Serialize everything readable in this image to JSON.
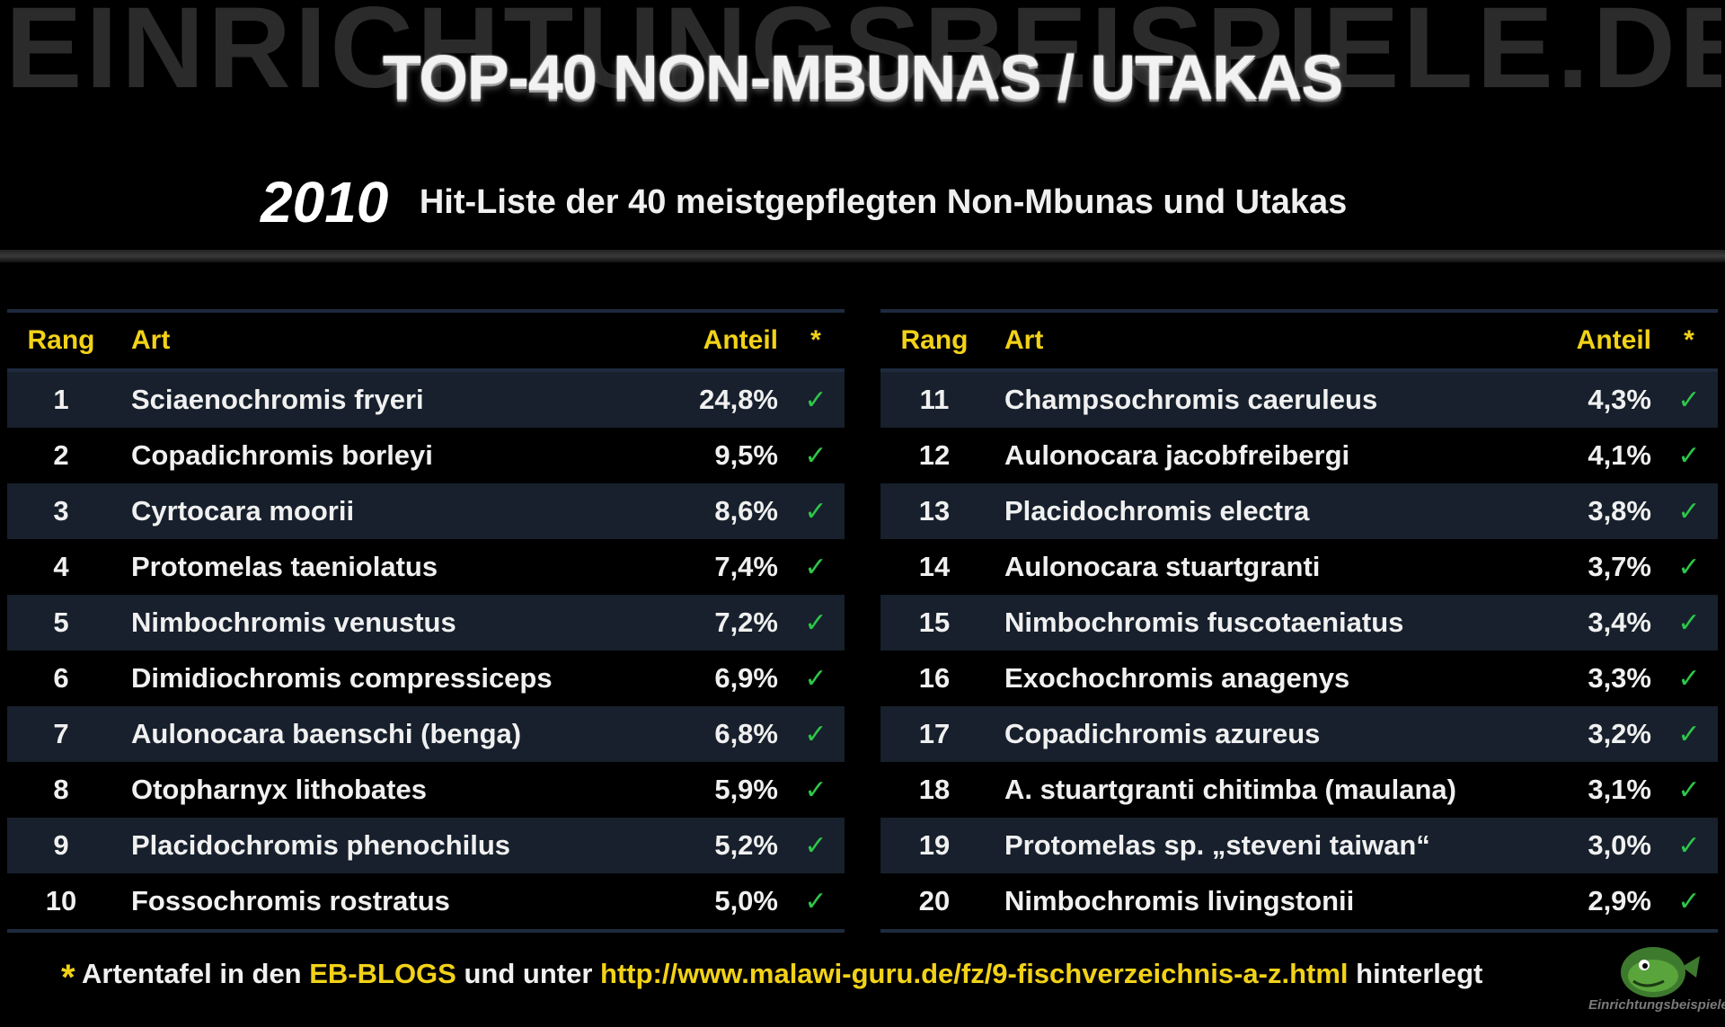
{
  "watermark": "EINRICHTUNGSBEISPIELE.DE",
  "title": "TOP-40 NON-MBUNAS / UTAKAS",
  "year": "2010",
  "subtitle": "Hit-Liste der 40 meistgepflegten Non-Mbunas und Utakas",
  "columns": {
    "rank": "Rang",
    "species": "Art",
    "share": "Anteil",
    "star": "*"
  },
  "check_symbol": "✓",
  "rows": [
    {
      "rank": "1",
      "species": "Sciaenochromis fryeri",
      "share": "24,8%"
    },
    {
      "rank": "2",
      "species": "Copadichromis borleyi",
      "share": "9,5%"
    },
    {
      "rank": "3",
      "species": "Cyrtocara moorii",
      "share": "8,6%"
    },
    {
      "rank": "4",
      "species": "Protomelas taeniolatus",
      "share": "7,4%"
    },
    {
      "rank": "5",
      "species": "Nimbochromis venustus",
      "share": "7,2%"
    },
    {
      "rank": "6",
      "species": "Dimidiochromis compressiceps",
      "share": "6,9%"
    },
    {
      "rank": "7",
      "species": "Aulonocara baenschi (benga)",
      "share": "6,8%"
    },
    {
      "rank": "8",
      "species": "Otopharnyx lithobates",
      "share": "5,9%"
    },
    {
      "rank": "9",
      "species": "Placidochromis phenochilus",
      "share": "5,2%"
    },
    {
      "rank": "10",
      "species": "Fossochromis rostratus",
      "share": "5,0%"
    },
    {
      "rank": "11",
      "species": "Champsochromis caeruleus",
      "share": "4,3%"
    },
    {
      "rank": "12",
      "species": "Aulonocara jacobfreibergi",
      "share": "4,1%"
    },
    {
      "rank": "13",
      "species": "Placidochromis electra",
      "share": "3,8%"
    },
    {
      "rank": "14",
      "species": "Aulonocara stuartgranti",
      "share": "3,7%"
    },
    {
      "rank": "15",
      "species": "Nimbochromis fuscotaeniatus",
      "share": "3,4%"
    },
    {
      "rank": "16",
      "species": "Exochochromis anagenys",
      "share": "3,3%"
    },
    {
      "rank": "17",
      "species": "Copadichromis azureus",
      "share": "3,2%"
    },
    {
      "rank": "18",
      "species": "A. stuartgranti  chitimba (maulana)",
      "share": "3,1%"
    },
    {
      "rank": "19",
      "species": "Protomelas sp. „steveni taiwan“",
      "share": "3,0%"
    },
    {
      "rank": "20",
      "species": "Nimbochromis livingstonii",
      "share": "2,9%"
    }
  ],
  "footer": {
    "star": "*",
    "text1": " Artentafel in den ",
    "blogs": "EB-BLOGS",
    "text2": " und unter ",
    "url": "http://www.malawi-guru.de/fz/9-fischverzeichnis-a-z.html",
    "text3": " hinterlegt"
  },
  "logo": {
    "text": "Einrichtungsbeispiele"
  }
}
